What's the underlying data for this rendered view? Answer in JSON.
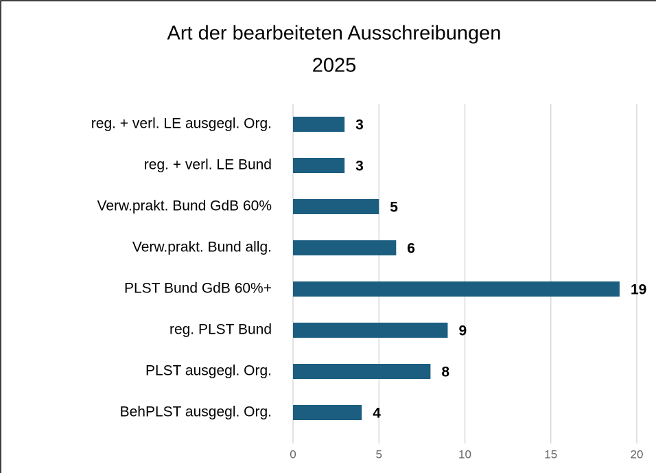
{
  "chart_data": {
    "type": "bar",
    "horizontal": true,
    "title": "Art der bearbeiteten Ausschreibungen",
    "subtitle": "2025",
    "categories": [
      "reg. + verl. LE ausgegl. Org.",
      "reg. + verl. LE Bund",
      "Verw.prakt. Bund GdB 60%",
      "Verw.prakt. Bund allg.",
      "PLST Bund GdB 60%+",
      "reg. PLST Bund",
      "PLST ausgegl. Org.",
      "BehPLST ausgegl. Org."
    ],
    "values": [
      3,
      3,
      5,
      6,
      19,
      9,
      8,
      4
    ],
    "color": "#1b5e80",
    "xlim": [
      0,
      20
    ],
    "xticks": [
      0,
      5,
      10,
      15,
      20
    ],
    "grid": true
  }
}
